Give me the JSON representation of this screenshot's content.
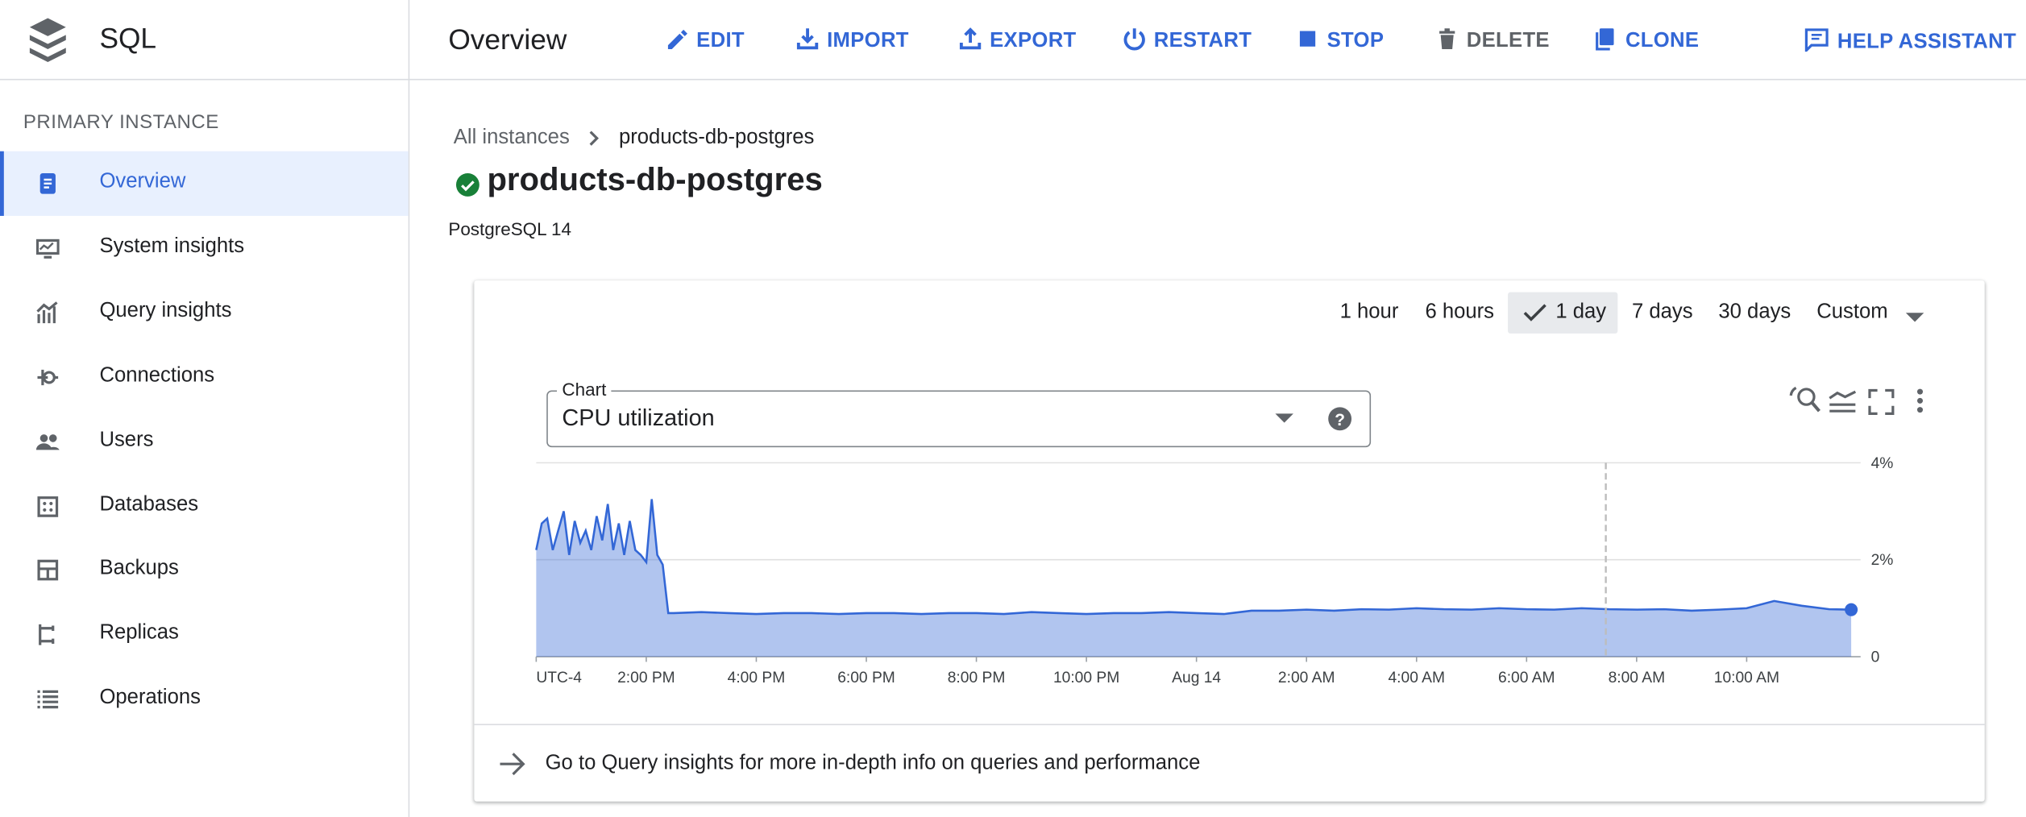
{
  "app": {
    "title": "SQL"
  },
  "toolbar": {
    "title": "Overview",
    "actions": [
      "EDIT",
      "IMPORT",
      "EXPORT",
      "RESTART",
      "STOP",
      "DELETE",
      "CLONE"
    ],
    "help": "HELP ASSISTANT"
  },
  "sidebar": {
    "heading": "PRIMARY INSTANCE",
    "items": [
      "Overview",
      "System insights",
      "Query insights",
      "Connections",
      "Users",
      "Databases",
      "Backups",
      "Replicas",
      "Operations"
    ],
    "active": 0
  },
  "breadcrumb": [
    "All instances",
    "products-db-postgres"
  ],
  "instance": {
    "name": "products-db-postgres",
    "version": "PostgreSQL 14"
  },
  "time_ranges": {
    "options": [
      "1 hour",
      "6 hours",
      "1 day",
      "7 days",
      "30 days",
      "Custom"
    ],
    "selected": 2
  },
  "chart_selector": {
    "label": "Chart",
    "value": "CPU utilization"
  },
  "chart_data": {
    "type": "area",
    "color": "#3367d6",
    "x": [
      12,
      12.1,
      12.2,
      12.3,
      12.4,
      12.5,
      12.6,
      12.7,
      12.8,
      12.9,
      13,
      13.1,
      13.2,
      13.3,
      13.4,
      13.5,
      13.6,
      13.7,
      13.8,
      13.9,
      14,
      14.1,
      14.2,
      14.3,
      14.4,
      14.5,
      15,
      15.5,
      16,
      16.5,
      17,
      17.5,
      18,
      18.5,
      19,
      19.5,
      20,
      20.5,
      21,
      21.5,
      22,
      22.5,
      23,
      23.5,
      24,
      24.5,
      25,
      25.5,
      26,
      26.5,
      27,
      27.5,
      28,
      28.5,
      29,
      29.5,
      30,
      30.5,
      31,
      31.5,
      32,
      32.5,
      33,
      33.5,
      34,
      34.5,
      35,
      35.5,
      35.9
    ],
    "values": [
      2.2,
      2.75,
      2.85,
      2.2,
      2.6,
      3.0,
      2.1,
      2.8,
      2.35,
      2.6,
      2.2,
      2.9,
      2.4,
      3.15,
      2.2,
      2.75,
      2.1,
      2.8,
      2.2,
      2.1,
      1.95,
      3.25,
      2.1,
      1.9,
      0.9,
      0.9,
      0.92,
      0.9,
      0.88,
      0.9,
      0.9,
      0.88,
      0.9,
      0.9,
      0.88,
      0.9,
      0.9,
      0.88,
      0.92,
      0.9,
      0.88,
      0.9,
      0.9,
      0.92,
      0.9,
      0.88,
      0.95,
      0.95,
      0.97,
      0.95,
      0.98,
      0.97,
      1.0,
      0.98,
      0.97,
      1.0,
      0.98,
      0.97,
      1.0,
      0.98,
      0.97,
      0.98,
      0.95,
      0.97,
      1.0,
      1.15,
      1.05,
      0.98,
      0.97
    ],
    "xlim": [
      12,
      36
    ],
    "xticks": [
      {
        "value": 12,
        "label": "UTC-4"
      },
      {
        "value": 14,
        "label": "2:00 PM"
      },
      {
        "value": 16,
        "label": "4:00 PM"
      },
      {
        "value": 18,
        "label": "6:00 PM"
      },
      {
        "value": 20,
        "label": "8:00 PM"
      },
      {
        "value": 22,
        "label": "10:00 PM"
      },
      {
        "value": 24,
        "label": "Aug 14"
      },
      {
        "value": 26,
        "label": "2:00 AM"
      },
      {
        "value": 28,
        "label": "4:00 AM"
      },
      {
        "value": 30,
        "label": "6:00 AM"
      },
      {
        "value": 32,
        "label": "8:00 AM"
      },
      {
        "value": 34,
        "label": "10:00 AM"
      }
    ],
    "ylim": [
      0,
      4
    ],
    "yticks": [
      0,
      {
        "value": 2,
        "label": "2%"
      },
      {
        "value": 4,
        "label": "4%"
      }
    ],
    "grid": true,
    "cursor_x": 31.44
  },
  "footer_link": "Go to Query insights for more in-depth info on queries and performance"
}
